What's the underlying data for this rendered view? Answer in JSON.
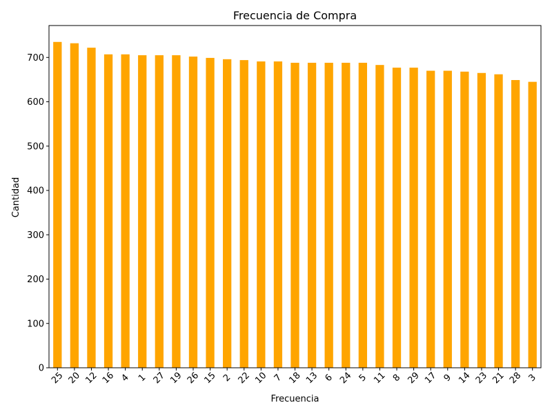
{
  "chart_data": {
    "type": "bar",
    "title": "Frecuencia de Compra",
    "xlabel": "Frecuencia",
    "ylabel": "Cantidad",
    "categories": [
      "25",
      "20",
      "12",
      "16",
      "4",
      "1",
      "27",
      "19",
      "26",
      "15",
      "2",
      "22",
      "10",
      "7",
      "18",
      "13",
      "6",
      "24",
      "5",
      "11",
      "8",
      "29",
      "17",
      "9",
      "14",
      "23",
      "21",
      "28",
      "3"
    ],
    "values": [
      735,
      732,
      722,
      707,
      707,
      705,
      705,
      705,
      702,
      699,
      696,
      694,
      691,
      691,
      688,
      688,
      688,
      688,
      688,
      683,
      677,
      677,
      670,
      670,
      668,
      665,
      662,
      649,
      645
    ],
    "yticks": [
      0,
      100,
      200,
      300,
      400,
      500,
      600,
      700
    ],
    "ylim": [
      0,
      772
    ],
    "grid": false,
    "legend": "none",
    "bar_color": "#FFA500",
    "xtick_rotation_deg": 45
  }
}
